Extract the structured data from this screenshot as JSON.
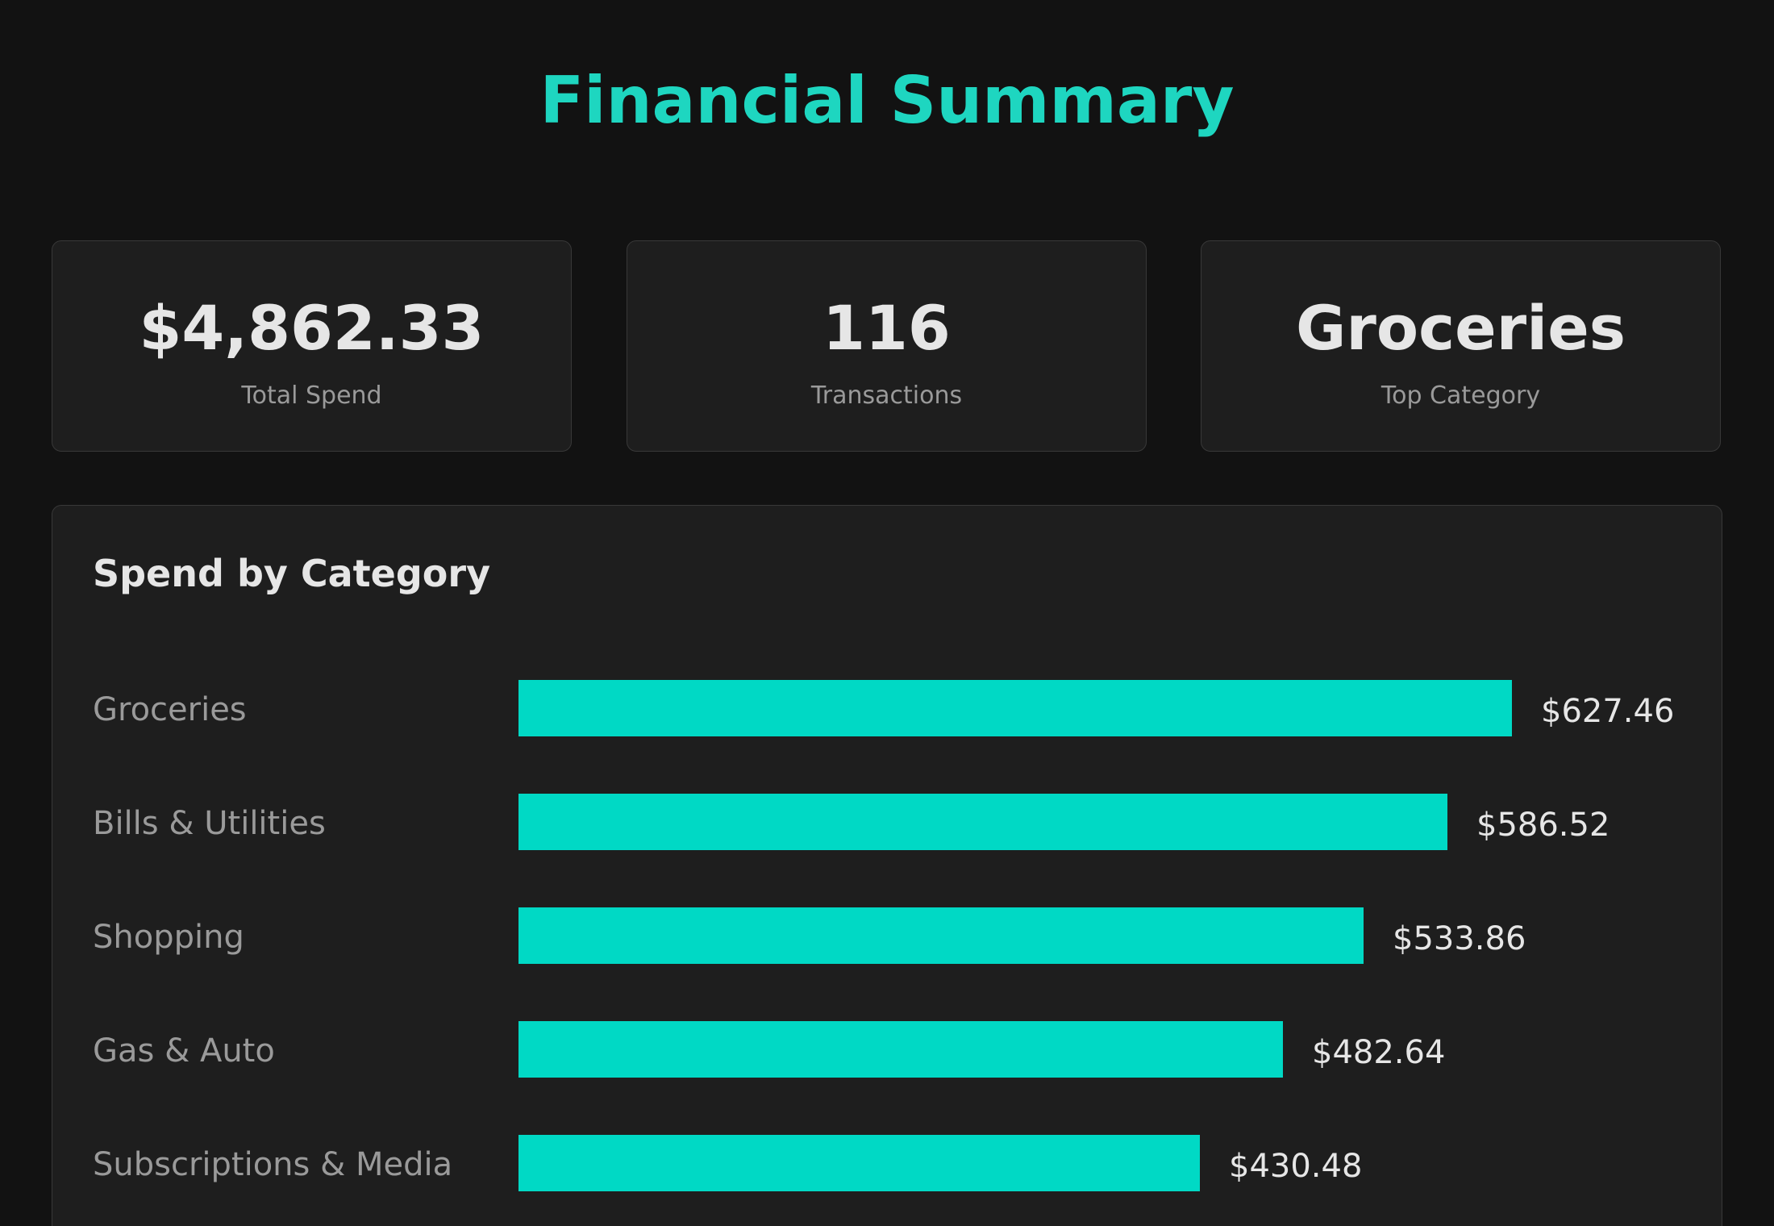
{
  "header": {
    "title": "Financial Summary",
    "title_color": "#1ed6c0"
  },
  "cards": [
    {
      "value": "$4,862.33",
      "label": "Total Spend"
    },
    {
      "value": "116",
      "label": "Transactions"
    },
    {
      "value": "Groceries",
      "label": "Top Category"
    }
  ],
  "category_panel": {
    "title": "Spend by Category"
  },
  "chart_data": {
    "type": "bar",
    "orientation": "horizontal",
    "title": "Spend by Category",
    "categories": [
      "Groceries",
      "Bills & Utilities",
      "Shopping",
      "Gas & Auto",
      "Subscriptions & Media"
    ],
    "values": [
      627.46,
      586.52,
      533.86,
      482.64,
      430.48
    ],
    "value_labels": [
      "$627.46",
      "$586.52",
      "$533.86",
      "$482.64",
      "$430.48"
    ],
    "xlim": [
      0,
      627.46
    ],
    "bar_color": "#00d9c5",
    "grid": false,
    "legend": "none"
  }
}
